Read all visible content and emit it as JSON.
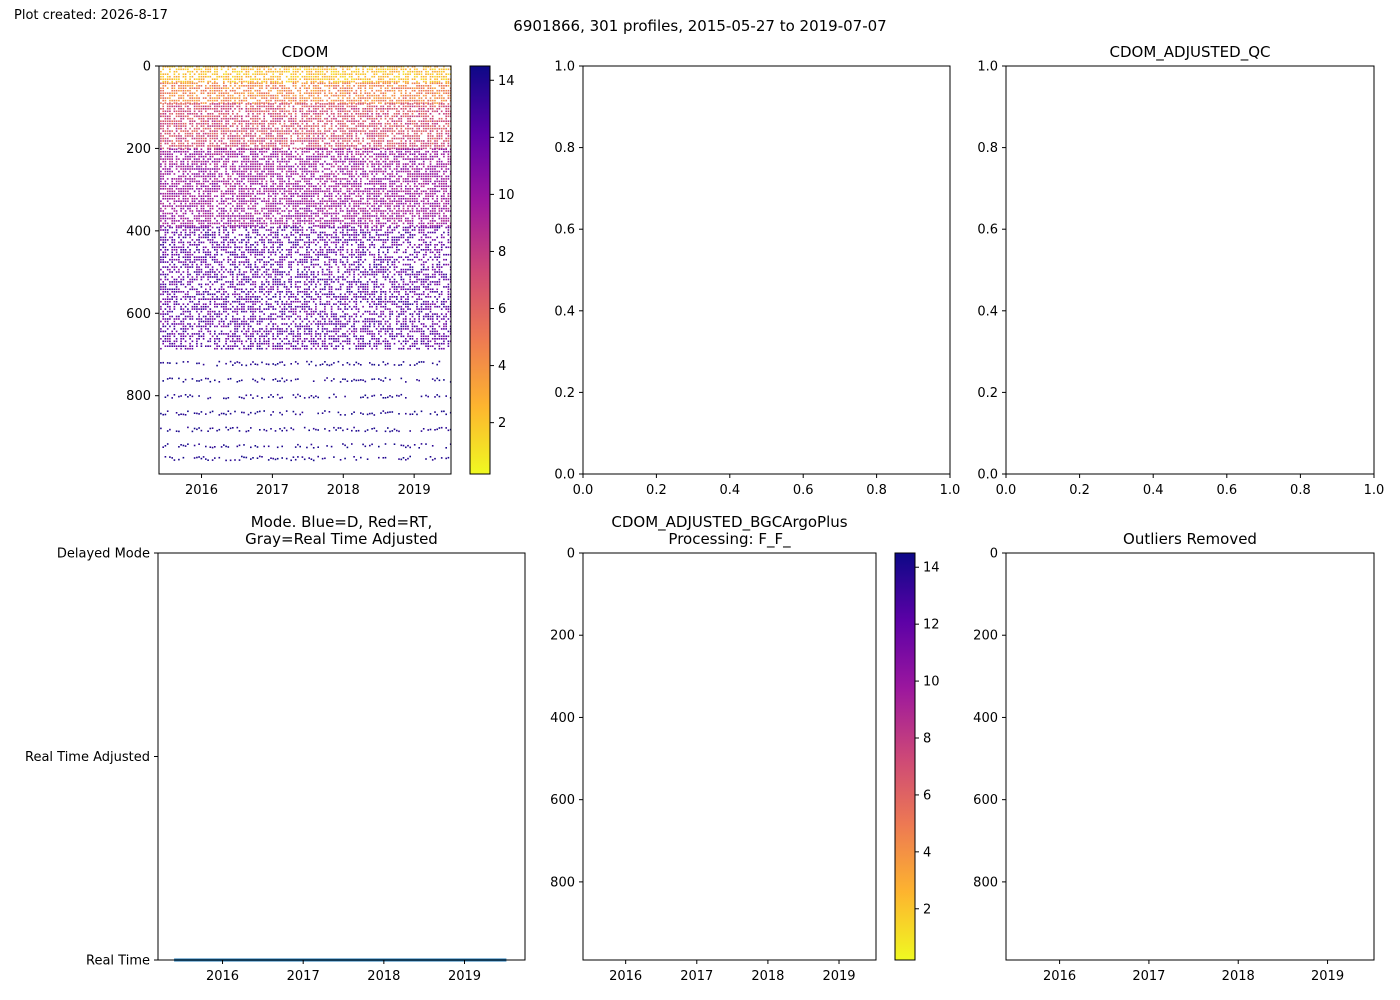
{
  "header": {
    "created": "Plot created: 2026-8-17",
    "suptitle": "6901866, 301 profiles, 2015-05-27 to 2019-07-07"
  },
  "colors": {
    "colormap": [
      "#f0f921",
      "#fdb42f",
      "#ed7953",
      "#cc4778",
      "#9c179e",
      "#5c01a6",
      "#0d0887"
    ],
    "mode_line": "#1f77b4"
  },
  "chart_data": [
    {
      "id": "p1",
      "type": "heatmap",
      "title": "CDOM",
      "xlim": [
        2015.4,
        2019.52
      ],
      "ylim": [
        0,
        990
      ],
      "y_inverted": true,
      "xticks": [
        2016,
        2017,
        2018,
        2019
      ],
      "xtick_labels": [
        "2016",
        "2017",
        "2018",
        "2019"
      ],
      "yticks": [
        0,
        200,
        400,
        600,
        800
      ],
      "ytick_labels": [
        "0",
        "200",
        "400",
        "600",
        "800"
      ],
      "colorbar": {
        "range": [
          0.2,
          14.5
        ],
        "ticks": [
          2,
          4,
          6,
          8,
          10,
          12,
          14
        ],
        "tick_labels": [
          "2",
          "4",
          "6",
          "8",
          "10",
          "12",
          "14"
        ]
      },
      "layers": [
        {
          "pmin": 0,
          "pmax": 40,
          "vmin": 1,
          "vmax": 3.5
        },
        {
          "pmin": 40,
          "pmax": 90,
          "vmin": 3,
          "vmax": 6
        },
        {
          "pmin": 90,
          "pmax": 200,
          "vmin": 5.5,
          "vmax": 8.5
        },
        {
          "pmin": 200,
          "pmax": 390,
          "vmin": 8.5,
          "vmax": 11
        },
        {
          "pmin": 390,
          "pmax": 690,
          "vmin": 10.5,
          "vmax": 13.5
        }
      ],
      "deep_bands": [
        720,
        760,
        800,
        840,
        880,
        920,
        950
      ]
    },
    {
      "id": "p2",
      "type": "scatter",
      "title": "",
      "xlim": [
        0,
        1
      ],
      "ylim": [
        0,
        1
      ],
      "empty": true,
      "xticks": [
        0,
        0.2,
        0.4,
        0.6,
        0.8,
        1
      ],
      "xtick_labels": [
        "0.0",
        "0.2",
        "0.4",
        "0.6",
        "0.8",
        "1.0"
      ],
      "yticks": [
        0,
        0.2,
        0.4,
        0.6,
        0.8,
        1
      ],
      "ytick_labels": [
        "0.0",
        "0.2",
        "0.4",
        "0.6",
        "0.8",
        "1.0"
      ]
    },
    {
      "id": "p3",
      "type": "scatter",
      "title": "CDOM_ADJUSTED_QC",
      "xlim": [
        0,
        1
      ],
      "ylim": [
        0,
        1
      ],
      "empty": true,
      "xticks": [
        0,
        0.2,
        0.4,
        0.6,
        0.8,
        1
      ],
      "xtick_labels": [
        "0.0",
        "0.2",
        "0.4",
        "0.6",
        "0.8",
        "1.0"
      ],
      "yticks": [
        0,
        0.2,
        0.4,
        0.6,
        0.8,
        1
      ],
      "ytick_labels": [
        "0.0",
        "0.2",
        "0.4",
        "0.6",
        "0.8",
        "1.0"
      ]
    },
    {
      "id": "p4",
      "type": "line",
      "title": "Mode. Blue=D, Red=RT,\nGray=Real Time Adjusted",
      "xlim": [
        2015.2,
        2019.75
      ],
      "ylim": [
        0,
        2
      ],
      "xticks": [
        2016,
        2017,
        2018,
        2019
      ],
      "xtick_labels": [
        "2016",
        "2017",
        "2018",
        "2019"
      ],
      "yticks": [
        0,
        1,
        2
      ],
      "ytick_labels": [
        "Real Time",
        "Real Time Adjusted",
        "Delayed Mode"
      ],
      "series": [
        {
          "x": [
            2015.4,
            2019.52
          ],
          "y": [
            0,
            0
          ]
        }
      ]
    },
    {
      "id": "p5",
      "type": "heatmap",
      "title": "CDOM_ADJUSTED_BGCArgoPlus\nProcessing: F_F_",
      "xlim": [
        2015.4,
        2019.52
      ],
      "ylim": [
        0,
        990
      ],
      "y_inverted": true,
      "empty": true,
      "xticks": [
        2016,
        2017,
        2018,
        2019
      ],
      "xtick_labels": [
        "2016",
        "2017",
        "2018",
        "2019"
      ],
      "yticks": [
        0,
        200,
        400,
        600,
        800
      ],
      "ytick_labels": [
        "0",
        "200",
        "400",
        "600",
        "800"
      ],
      "colorbar": {
        "range": [
          0.2,
          14.5
        ],
        "ticks": [
          2,
          4,
          6,
          8,
          10,
          12,
          14
        ],
        "tick_labels": [
          "2",
          "4",
          "6",
          "8",
          "10",
          "12",
          "14"
        ]
      }
    },
    {
      "id": "p6",
      "type": "heatmap",
      "title": "Outliers Removed",
      "xlim": [
        2015.4,
        2019.52
      ],
      "ylim": [
        0,
        990
      ],
      "y_inverted": true,
      "empty": true,
      "xticks": [
        2016,
        2017,
        2018,
        2019
      ],
      "xtick_labels": [
        "2016",
        "2017",
        "2018",
        "2019"
      ],
      "yticks": [
        0,
        200,
        400,
        600,
        800
      ],
      "ytick_labels": [
        "0",
        "200",
        "400",
        "600",
        "800"
      ]
    }
  ]
}
